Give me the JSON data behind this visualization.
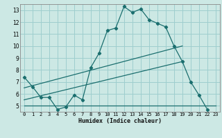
{
  "xlabel": "Humidex (Indice chaleur)",
  "background_color": "#cce8e4",
  "grid_color": "#9ecece",
  "line_color": "#1a6e6e",
  "xlim": [
    -0.5,
    23.5
  ],
  "ylim": [
    4.5,
    13.5
  ],
  "xticks": [
    0,
    1,
    2,
    3,
    4,
    5,
    6,
    7,
    8,
    9,
    10,
    11,
    12,
    13,
    14,
    15,
    16,
    17,
    18,
    19,
    20,
    21,
    22,
    23
  ],
  "yticks": [
    5,
    6,
    7,
    8,
    9,
    10,
    11,
    12,
    13
  ],
  "series_main": {
    "x": [
      0,
      1,
      2,
      3,
      4,
      5,
      6,
      7,
      8,
      9,
      10,
      11,
      12,
      13,
      14,
      15,
      16,
      17,
      18,
      19,
      20,
      21,
      22
    ],
    "y": [
      7.4,
      6.6,
      5.7,
      5.7,
      4.7,
      4.9,
      5.9,
      5.5,
      8.2,
      9.4,
      11.3,
      11.5,
      13.3,
      12.8,
      13.1,
      12.2,
      11.9,
      11.6,
      10.0,
      8.7,
      7.0,
      5.9,
      4.7
    ]
  },
  "series_lines": [
    {
      "x": [
        0,
        19
      ],
      "y": [
        6.5,
        10.0
      ]
    },
    {
      "x": [
        0,
        19
      ],
      "y": [
        5.5,
        8.7
      ]
    },
    {
      "x": [
        0,
        23
      ],
      "y": [
        5.0,
        5.0
      ]
    }
  ]
}
